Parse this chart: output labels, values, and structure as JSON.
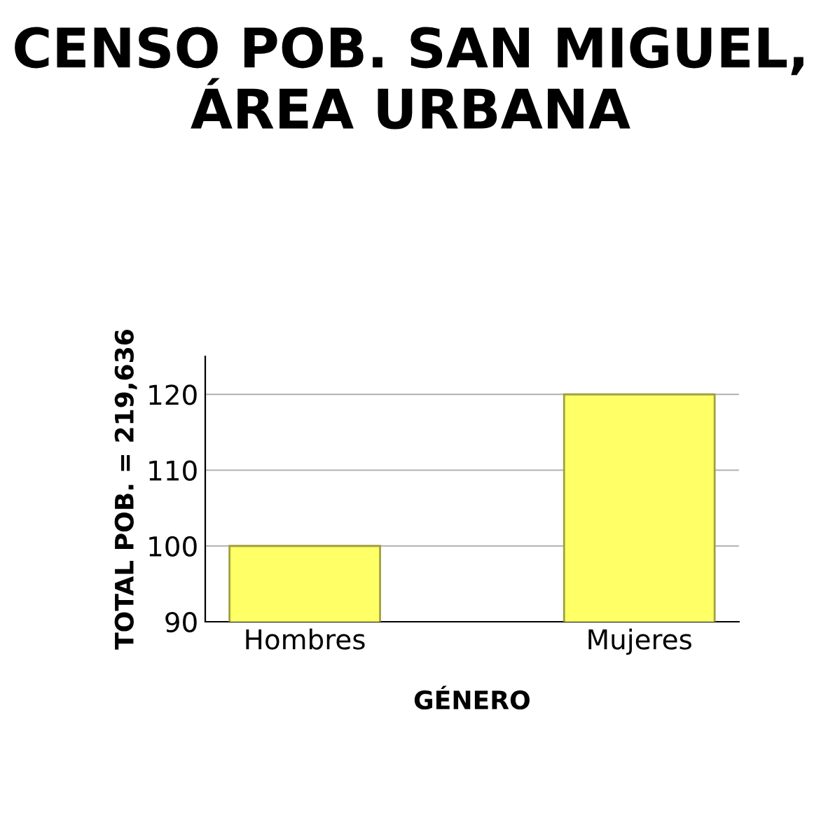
{
  "chart_data": {
    "type": "bar",
    "title": "CENSO POB. SAN MIGUEL, ÁREA URBANA",
    "xlabel": "GÉNERO",
    "ylabel": "TOTAL POB. = 219,636",
    "categories": [
      "Hombres",
      "Mujeres"
    ],
    "values": [
      100,
      120
    ],
    "color": "#ffff66",
    "ylim": [
      90,
      125
    ],
    "yticks": [
      90,
      100,
      110,
      120
    ],
    "grid": "y"
  }
}
